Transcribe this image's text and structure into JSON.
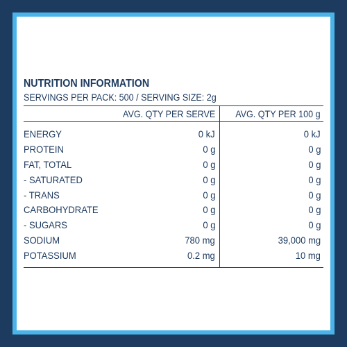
{
  "label": {
    "title": "NUTRITION INFORMATION",
    "serving_info": "SERVINGS PER PACK: 500 / SERVING SIZE: 2g",
    "columns": {
      "name": "",
      "per_serve": "AVG. QTY PER SERVE",
      "per_100g": "AVG. QTY PER 100 g"
    },
    "rows": [
      {
        "name": "ENERGY",
        "per_serve": "0 kJ",
        "per_100g": "0 kJ"
      },
      {
        "name": "PROTEIN",
        "per_serve": "0 g",
        "per_100g": "0 g"
      },
      {
        "name": "FAT, TOTAL",
        "per_serve": "0 g",
        "per_100g": "0 g"
      },
      {
        "name": "- SATURATED",
        "per_serve": "0 g",
        "per_100g": "0 g"
      },
      {
        "name": "- TRANS",
        "per_serve": "0 g",
        "per_100g": "0 g"
      },
      {
        "name": "CARBOHYDRATE",
        "per_serve": "0 g",
        "per_100g": "0 g"
      },
      {
        "name": "- SUGARS",
        "per_serve": "0 g",
        "per_100g": "0 g"
      },
      {
        "name": "SODIUM",
        "per_serve": "780 mg",
        "per_100g": "39,000 mg"
      },
      {
        "name": "POTASSIUM",
        "per_serve": "0.2 mg",
        "per_100g": "10 mg"
      }
    ]
  },
  "colors": {
    "outer_frame": "#1d3a5f",
    "inner_border": "#4ab3e8",
    "panel": "#ffffff",
    "text": "#1d3a5f"
  }
}
